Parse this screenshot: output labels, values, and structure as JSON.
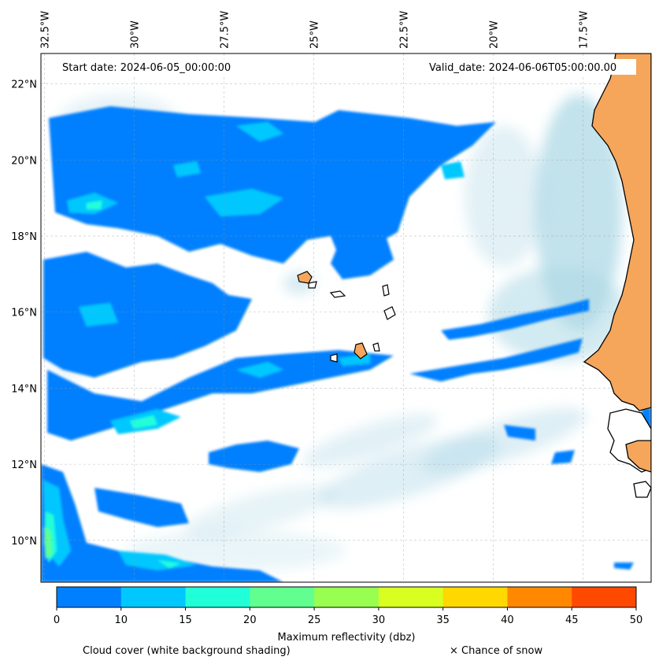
{
  "map": {
    "start_label": "Start date: 2024-06-05_00:00:00",
    "valid_label": "Valid_date: 2024-06-06T05:00:00.00",
    "lon_labels": [
      "32.5°W",
      "30°W",
      "27.5°W",
      "25°W",
      "22.5°W",
      "20°W",
      "17.5°W"
    ],
    "lat_labels": [
      "22°N",
      "20°N",
      "18°N",
      "16°N",
      "14°N",
      "12°N",
      "10°N"
    ],
    "extent": {
      "lon_min": -32.6,
      "lon_max": -15.6,
      "lat_min": 8.9,
      "lat_max": 22.8
    },
    "colors": {
      "land": "#f5a65b",
      "cloud": "#add8e6",
      "coast": "#000000"
    }
  },
  "colorbar": {
    "ticks": [
      "0",
      "10",
      "15",
      "20",
      "25",
      "30",
      "35",
      "40",
      "45",
      "50"
    ],
    "colors": [
      "#0080ff",
      "#00c8ff",
      "#20ffd8",
      "#60ff90",
      "#98ff50",
      "#d8ff20",
      "#ffd800",
      "#ff8800",
      "#ff4800"
    ],
    "label": "Maximum reflectivity (dbz)"
  },
  "footer": {
    "cloud_label": "Cloud cover (white background shading)",
    "snow_label": "× Chance of snow"
  }
}
